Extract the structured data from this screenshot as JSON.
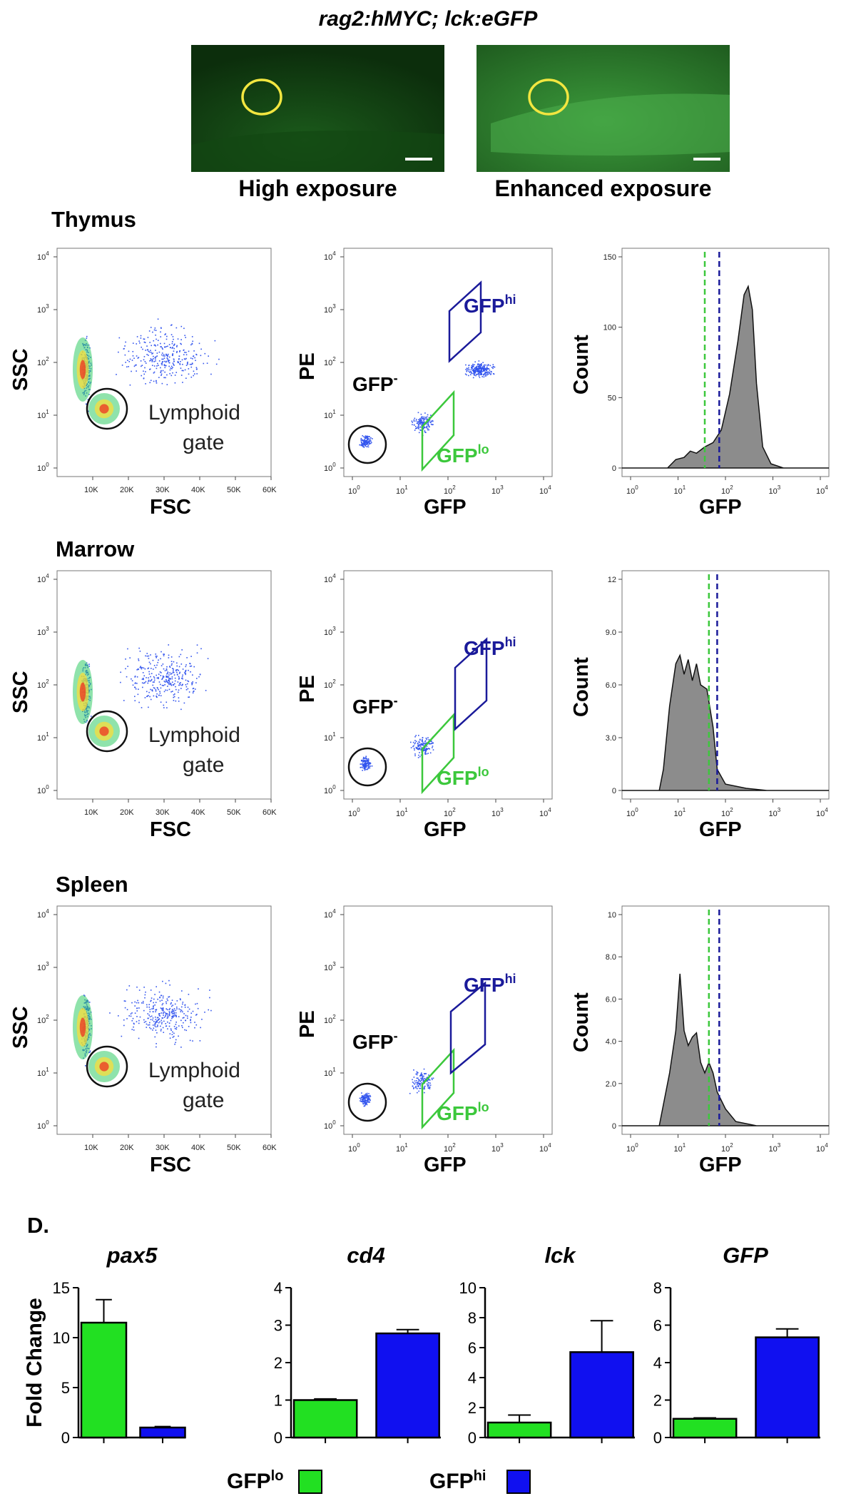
{
  "figure": {
    "title": "rag2:hMYC; lck:eGFP",
    "panel_d_label": "D."
  },
  "micrographs": [
    {
      "label": "High exposure"
    },
    {
      "label": "Enhanced exposure"
    }
  ],
  "colors": {
    "gfp_lo": "#22e022",
    "gfp_hi": "#1010f0",
    "gate_lo": "#3cc83c",
    "gate_hi": "#1a1a9a",
    "hist_fill": "#8c8c8c",
    "circle": "#f2e640"
  },
  "flow_labels": {
    "fsc": "FSC",
    "ssc": "SSC",
    "pe": "PE",
    "gfp": "GFP",
    "count": "Count",
    "lymphoid": "Lymphoid",
    "gate": "gate",
    "gfp_base": "GFP",
    "neg_sup": "-",
    "hi_sup": "hi",
    "lo_sup": "lo",
    "fsc_ticks": [
      "10K",
      "20K",
      "30K",
      "40K",
      "50K",
      "60K"
    ],
    "log_ticks": [
      "10",
      "10",
      "10",
      "10",
      "10"
    ],
    "log_exp": [
      "0",
      "1",
      "2",
      "3",
      "4"
    ]
  },
  "tissues": [
    {
      "name": "Thymus",
      "hist_ticks": [
        "0",
        "50",
        "100",
        "150"
      ],
      "hist_max": 150
    },
    {
      "name": "Marrow",
      "hist_ticks": [
        "0",
        "3.0",
        "6.0",
        "9.0",
        "12"
      ],
      "hist_max": 12
    },
    {
      "name": "Spleen",
      "hist_ticks": [
        "0",
        "2.0",
        "4.0",
        "6.0",
        "8.0",
        "10"
      ],
      "hist_max": 10
    }
  ],
  "chart_data": [
    {
      "type": "bar",
      "title": "pax5",
      "ylabel": "Fold Change",
      "categories": [
        "GFPlo",
        "GFPhi"
      ],
      "values": [
        11.5,
        1.0
      ],
      "errors": [
        2.3,
        0.1
      ],
      "ylim": [
        0,
        15
      ],
      "yticks": [
        "0",
        "5",
        "10",
        "15"
      ]
    },
    {
      "type": "bar",
      "title": "cd4",
      "ylabel": "",
      "categories": [
        "GFPlo",
        "GFPhi"
      ],
      "values": [
        1.0,
        2.78
      ],
      "errors": [
        0.03,
        0.1
      ],
      "ylim": [
        0,
        4
      ],
      "yticks": [
        "0",
        "1",
        "2",
        "3",
        "4"
      ]
    },
    {
      "type": "bar",
      "title": "lck",
      "ylabel": "",
      "categories": [
        "GFPlo",
        "GFPhi"
      ],
      "values": [
        1.0,
        5.7
      ],
      "errors": [
        0.5,
        2.1
      ],
      "ylim": [
        0,
        10
      ],
      "yticks": [
        "0",
        "2",
        "4",
        "6",
        "8",
        "10"
      ]
    },
    {
      "type": "bar",
      "title": "GFP",
      "ylabel": "",
      "categories": [
        "GFPlo",
        "GFPhi"
      ],
      "values": [
        1.0,
        5.35
      ],
      "errors": [
        0.05,
        0.45
      ],
      "ylim": [
        0,
        8
      ],
      "yticks": [
        "0",
        "2",
        "4",
        "6",
        "8"
      ]
    }
  ],
  "legend": {
    "lo_base": "GFP",
    "lo_sup": "lo",
    "hi_base": "GFP",
    "hi_sup": "hi"
  }
}
